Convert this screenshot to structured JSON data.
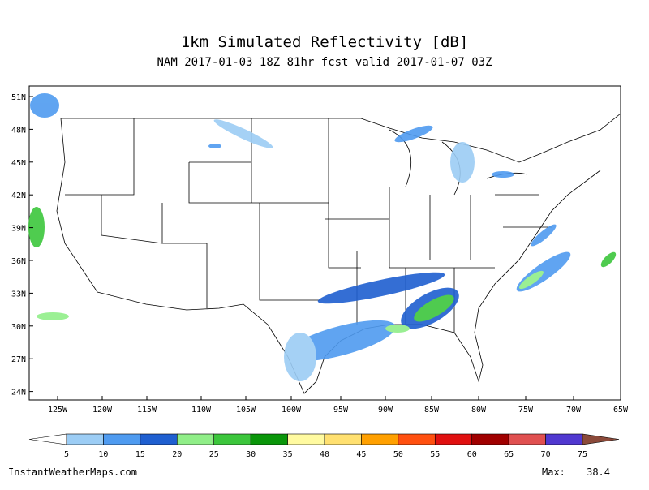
{
  "title": "1km Simulated Reflectivity [dB]",
  "subtitle": "NAM 2017-01-03 18Z 81hr fcst valid 2017-01-07 03Z",
  "latitude_labels": [
    "51N",
    "48N",
    "45N",
    "42N",
    "39N",
    "36N",
    "33N",
    "30N",
    "27N",
    "24N"
  ],
  "longitude_labels": [
    "125W",
    "120W",
    "115W",
    "110W",
    "105W",
    "100W",
    "95W",
    "90W",
    "85W",
    "80W",
    "75W",
    "70W",
    "65W"
  ],
  "colorbar": {
    "ticks": [
      5,
      10,
      15,
      20,
      25,
      30,
      35,
      40,
      45,
      50,
      55,
      60,
      65,
      70,
      75
    ],
    "colors": [
      "#ffffff",
      "#9ccdf5",
      "#4f9bf0",
      "#1f5fd0",
      "#90ee88",
      "#3cc63c",
      "#0a960a",
      "#fffaa0",
      "#ffe070",
      "#ffa000",
      "#ff5010",
      "#e01010",
      "#a00000",
      "#e05050",
      "#5038d0",
      "#8b4a3a"
    ]
  },
  "footer": {
    "source": "InstantWeatherMaps.com",
    "max_label": "Max:",
    "max_value": "38.4"
  }
}
